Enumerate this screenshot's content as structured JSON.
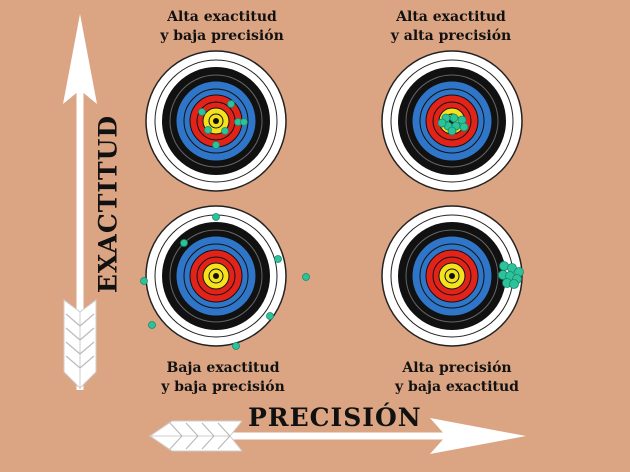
{
  "axes": {
    "x_label": "PRECISIÓN",
    "y_label": "EXACTITUD"
  },
  "targets": [
    {
      "id": "top-left",
      "caption_line1": "Alta exactitud",
      "caption_line2": "y baja precisión"
    },
    {
      "id": "top-right",
      "caption_line1": "Alta exactitud",
      "caption_line2": "y alta precisión"
    },
    {
      "id": "bottom-left",
      "caption_line1": "Baja exactitud",
      "caption_line2": "y baja precisión"
    },
    {
      "id": "bottom-right",
      "caption_line1": "Alta precisión",
      "caption_line2": "y baja exactitud"
    }
  ],
  "colors": {
    "background": "#dba583",
    "ring_white": "#ffffff",
    "ring_black": "#111111",
    "ring_blue": "#2f76c9",
    "ring_red": "#e2231a",
    "ring_yellow": "#f3e21c",
    "shot": "#2cc29a",
    "arrow": "#ffffff"
  }
}
